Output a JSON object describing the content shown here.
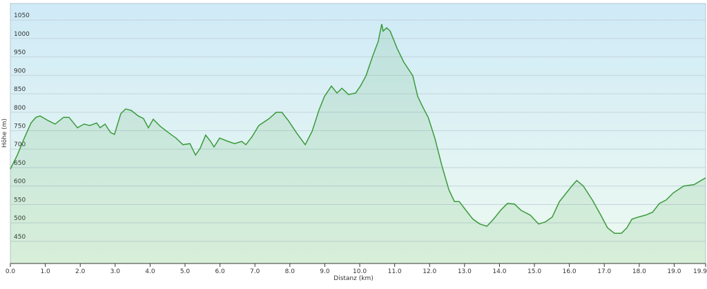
{
  "chart_data": {
    "type": "area",
    "x_label": "Distanz  (km)",
    "y_label": "Höhe (m)",
    "color": "#3a9a3a",
    "grid": true,
    "xlim": [
      0,
      19.9
    ],
    "ylim": [
      390,
      1095
    ],
    "xticks": [
      {
        "value": 0,
        "label": "0.0"
      },
      {
        "value": 1,
        "label": "1.0"
      },
      {
        "value": 2,
        "label": "2.0"
      },
      {
        "value": 3,
        "label": "3.0"
      },
      {
        "value": 4,
        "label": "4.0"
      },
      {
        "value": 5,
        "label": "5.0"
      },
      {
        "value": 6,
        "label": "6.0"
      },
      {
        "value": 7,
        "label": "7.0"
      },
      {
        "value": 8,
        "label": "8.0"
      },
      {
        "value": 9,
        "label": "9.0"
      },
      {
        "value": 10,
        "label": "10.0"
      },
      {
        "value": 11,
        "label": "11.0"
      },
      {
        "value": 12,
        "label": "12.0"
      },
      {
        "value": 13,
        "label": "13.0"
      },
      {
        "value": 14,
        "label": "14.0"
      },
      {
        "value": 15,
        "label": "15.0"
      },
      {
        "value": 16,
        "label": "16.0"
      },
      {
        "value": 17,
        "label": "17.0"
      },
      {
        "value": 18,
        "label": "18.0"
      },
      {
        "value": 19,
        "label": "19.0"
      },
      19.9
    ],
    "yticks": [
      450,
      500,
      550,
      600,
      650,
      700,
      750,
      800,
      850,
      900,
      950,
      1000,
      1050
    ],
    "x": [
      0,
      0.2,
      0.4,
      0.59,
      0.73,
      0.85,
      1.09,
      1.28,
      1.52,
      1.68,
      1.92,
      2.11,
      2.27,
      2.47,
      2.57,
      2.71,
      2.87,
      2.98,
      3.16,
      3.3,
      3.46,
      3.66,
      3.81,
      3.95,
      4.09,
      4.29,
      4.55,
      4.74,
      4.94,
      5.14,
      5.3,
      5.43,
      5.59,
      5.73,
      5.83,
      5.99,
      6.23,
      6.42,
      6.62,
      6.74,
      6.92,
      7.11,
      7.41,
      7.61,
      7.77,
      7.96,
      8.2,
      8.44,
      8.64,
      8.83,
      8.99,
      9.19,
      9.35,
      9.49,
      9.68,
      9.88,
      10.02,
      10.18,
      10.38,
      10.53,
      10.63,
      10.67,
      10.77,
      10.87,
      11.07,
      11.26,
      11.52,
      11.66,
      11.8,
      11.96,
      12.15,
      12.35,
      12.55,
      12.71,
      12.85,
      13.04,
      13.24,
      13.44,
      13.64,
      13.83,
      14.03,
      14.23,
      14.43,
      14.62,
      14.88,
      15.12,
      15.32,
      15.51,
      15.71,
      15.91,
      16.07,
      16.21,
      16.4,
      16.66,
      16.9,
      17.09,
      17.29,
      17.49,
      17.65,
      17.79,
      17.98,
      18.18,
      18.38,
      18.58,
      18.77,
      18.97,
      19.27,
      19.57,
      19.9
    ],
    "values": [
      646,
      684,
      730,
      771,
      786,
      790,
      777,
      768,
      786,
      786,
      758,
      768,
      764,
      771,
      758,
      768,
      745,
      740,
      796,
      809,
      805,
      790,
      783,
      758,
      781,
      762,
      743,
      730,
      712,
      715,
      684,
      702,
      738,
      721,
      706,
      730,
      721,
      715,
      721,
      712,
      734,
      764,
      783,
      800,
      800,
      777,
      743,
      712,
      749,
      805,
      843,
      871,
      852,
      865,
      848,
      852,
      871,
      899,
      955,
      992,
      1039,
      1020,
      1029,
      1020,
      973,
      936,
      899,
      843,
      815,
      786,
      730,
      656,
      590,
      558,
      558,
      534,
      510,
      497,
      491,
      510,
      534,
      553,
      551,
      534,
      521,
      497,
      503,
      516,
      557,
      581,
      600,
      615,
      600,
      562,
      521,
      487,
      472,
      472,
      487,
      510,
      516,
      521,
      529,
      553,
      562,
      581,
      600,
      604,
      622
    ]
  }
}
